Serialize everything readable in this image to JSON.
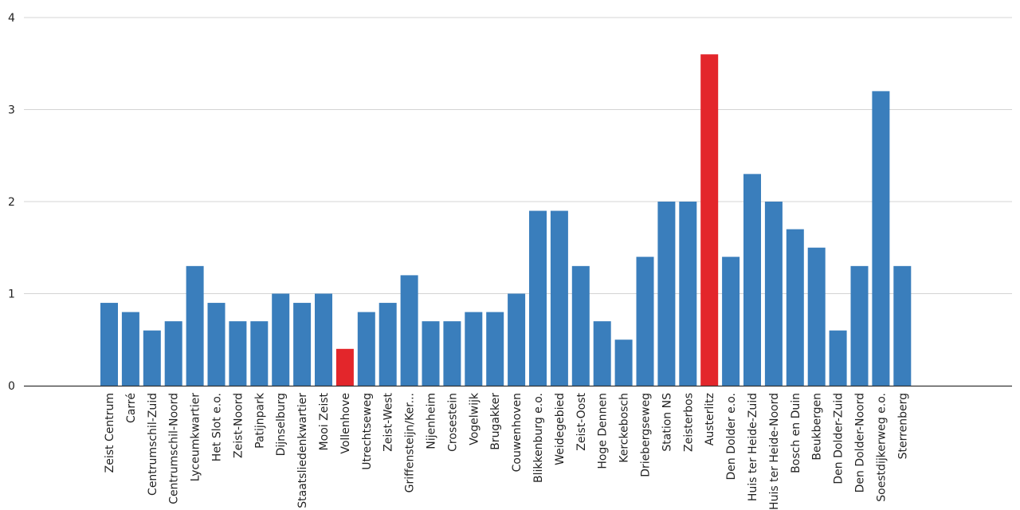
{
  "chart_data": {
    "type": "bar",
    "title": "",
    "xlabel": "",
    "ylabel": "",
    "ylim": [
      0,
      4
    ],
    "yticks": [
      0,
      1,
      2,
      3,
      4
    ],
    "grid": true,
    "legend": "none",
    "colors": {
      "default": "#3a7ebc",
      "highlight": "#e3262b"
    },
    "categories": [
      "Zeist Centrum",
      "Carré",
      "Centrumschil-Zuid",
      "Centrumschil-Noord",
      "Lyceumkwartier",
      "Het Slot e.o.",
      "Zeist-Noord",
      "Patijnpark",
      "Dijnselburg",
      "Staatsliedenkwartier",
      "Mooi Zeist",
      "Vollenhove",
      "Utrechtseweg",
      "Zeist-West",
      "Griffensteijn/Ker...",
      "Nijenheim",
      "Crosestein",
      "Vogelwijk",
      "Brugakker",
      "Couwenhoven",
      "Blikkenburg e.o.",
      "Weidegebied",
      "Zeist-Oost",
      "Hoge Dennen",
      "Kerckebosch",
      "Driebergseweg",
      "Station NS",
      "Zeisterbos",
      "Austerlitz",
      "Den Dolder e.o.",
      "Huis ter Heide-Zuid",
      "Huis ter Heide-Noord",
      "Bosch en Duin",
      "Beukbergen",
      "Den Dolder-Zuid",
      "Den Dolder-Noord",
      "Soestdijkerweg e.o.",
      "Sterrenberg"
    ],
    "values": [
      0.9,
      0.8,
      0.6,
      0.7,
      1.3,
      0.9,
      0.7,
      0.7,
      1.0,
      0.9,
      1.0,
      0.4,
      0.8,
      0.9,
      1.2,
      0.7,
      0.7,
      0.8,
      0.8,
      1.0,
      1.9,
      1.9,
      1.3,
      0.7,
      0.5,
      1.4,
      2.0,
      2.0,
      3.6,
      1.4,
      2.3,
      2.0,
      1.7,
      1.5,
      0.6,
      1.3,
      3.2,
      1.3
    ],
    "highlighted": [
      "Vollenhove",
      "Austerlitz"
    ]
  }
}
